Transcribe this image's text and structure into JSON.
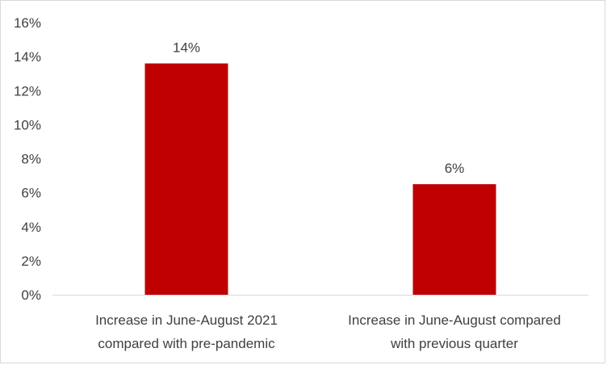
{
  "chart_data": {
    "type": "bar",
    "categories": [
      [
        "Increase in June-August 2021",
        "compared with pre-pandemic"
      ],
      [
        "Increase in June-August compared",
        "with previous quarter"
      ]
    ],
    "values": [
      13.6,
      6.5
    ],
    "data_labels": [
      "14%",
      "6%"
    ],
    "ylim": [
      0,
      16
    ],
    "y_ticks": [
      0,
      2,
      4,
      6,
      8,
      10,
      12,
      14,
      16
    ],
    "y_tick_labels": [
      "0%",
      "2%",
      "4%",
      "6%",
      "8%",
      "10%",
      "12%",
      "14%",
      "16%"
    ],
    "title": "",
    "xlabel": "",
    "ylabel": "",
    "grid": false,
    "bar_color": "#c00000",
    "axis_color": "#d9d9d9",
    "text_color": "#404040"
  }
}
